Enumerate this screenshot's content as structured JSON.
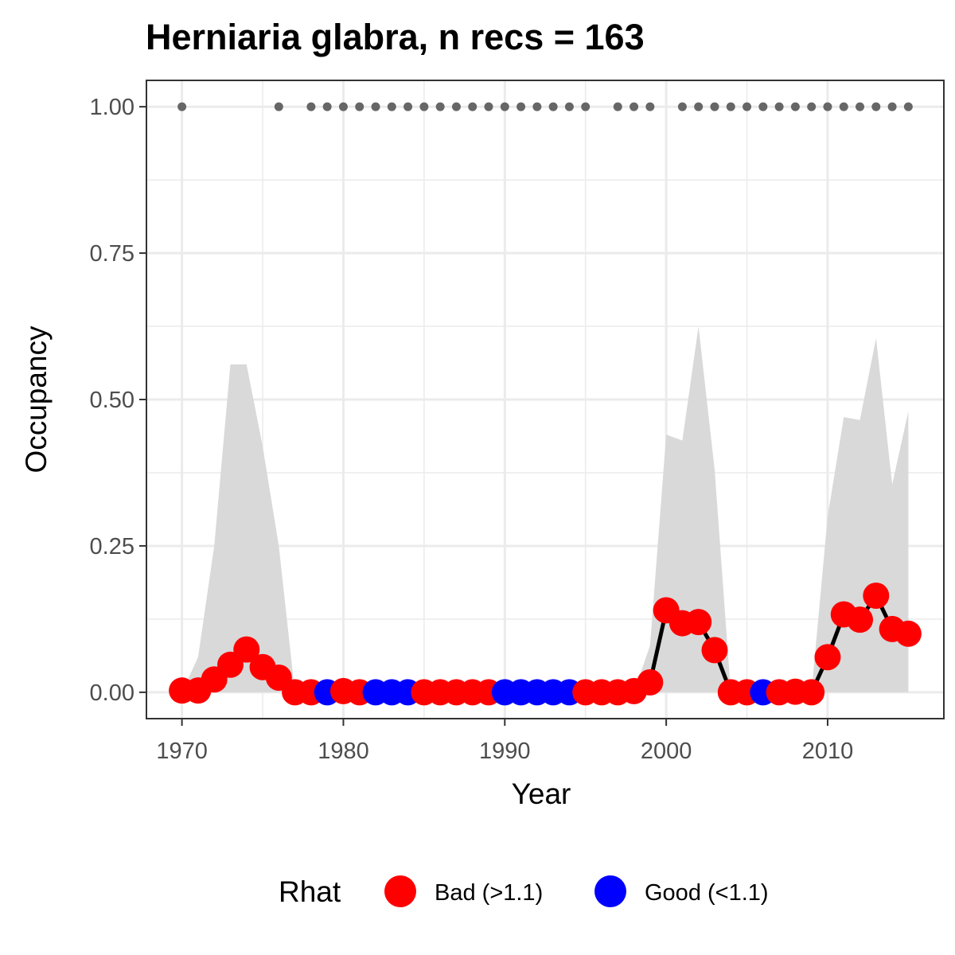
{
  "chart_data": {
    "type": "line",
    "title": "Herniaria glabra, n recs = 163",
    "xlabel": "Year",
    "ylabel": "Occupancy",
    "xlim": [
      1967.8,
      2017.2
    ],
    "ylim": [
      -0.045,
      1.045
    ],
    "x_ticks": [
      1970,
      1980,
      1990,
      2000,
      2010
    ],
    "x_tick_labels": [
      "1970",
      "1980",
      "1990",
      "2000",
      "2010"
    ],
    "y_ticks": [
      0,
      0.25,
      0.5,
      0.75,
      1.0
    ],
    "y_tick_labels": [
      "0.00",
      "0.25",
      "0.50",
      "0.75",
      "1.00"
    ],
    "grid": true,
    "legend": {
      "title": "Rhat",
      "position": "bottom",
      "entries": [
        {
          "label": "Bad (>1.1)",
          "color": "#ff0000"
        },
        {
          "label": "Good (<1.1)",
          "color": "#0000ff"
        }
      ]
    },
    "colors": {
      "bad": "#ff0000",
      "good": "#0000ff",
      "ribbon": "#d9d9d9",
      "line": "#000000",
      "record": "#666666"
    },
    "years": [
      1970,
      1971,
      1972,
      1973,
      1974,
      1975,
      1976,
      1977,
      1978,
      1979,
      1980,
      1981,
      1982,
      1983,
      1984,
      1985,
      1986,
      1987,
      1988,
      1989,
      1990,
      1991,
      1992,
      1993,
      1994,
      1995,
      1996,
      1997,
      1998,
      1999,
      2000,
      2001,
      2002,
      2003,
      2004,
      2005,
      2006,
      2007,
      2008,
      2009,
      2010,
      2011,
      2012,
      2013,
      2014,
      2015
    ],
    "occupancy": [
      0.003,
      0.003,
      0.022,
      0.047,
      0.073,
      0.043,
      0.025,
      0.0,
      0.0,
      0.0,
      0.002,
      0.0,
      0.0,
      0.0,
      0.0,
      0.0,
      0.0,
      0.0,
      0.0,
      0.0,
      0.0,
      0.0,
      0.0,
      0.0,
      0.0,
      0.0,
      0.0,
      0.0,
      0.002,
      0.017,
      0.14,
      0.118,
      0.12,
      0.072,
      0.0,
      0.0,
      0.0,
      0.0,
      0.001,
      0.0,
      0.06,
      0.133,
      0.124,
      0.165,
      0.108,
      0.1
    ],
    "upper": [
      0.0,
      0.06,
      0.25,
      0.56,
      0.56,
      0.42,
      0.25,
      0.0,
      0.0,
      0.0,
      0.0,
      0.0,
      0.0,
      0.0,
      0.0,
      0.0,
      0.0,
      0.0,
      0.0,
      0.0,
      0.0,
      0.0,
      0.0,
      0.0,
      0.0,
      0.0,
      0.0,
      0.0,
      0.0,
      0.08,
      0.44,
      0.43,
      0.625,
      0.38,
      0.0,
      0.0,
      0.0,
      0.0,
      0.0,
      0.0,
      0.3,
      0.47,
      0.465,
      0.605,
      0.355,
      0.48
    ],
    "rhat_good": [
      false,
      false,
      false,
      false,
      false,
      false,
      false,
      false,
      false,
      true,
      false,
      false,
      true,
      true,
      true,
      false,
      false,
      false,
      false,
      false,
      true,
      true,
      true,
      true,
      true,
      false,
      false,
      false,
      false,
      false,
      false,
      false,
      false,
      false,
      false,
      false,
      true,
      false,
      false,
      false,
      false,
      false,
      false,
      false,
      false,
      false
    ],
    "record_years": [
      1970,
      1976,
      1978,
      1979,
      1980,
      1981,
      1982,
      1983,
      1984,
      1985,
      1986,
      1987,
      1988,
      1989,
      1990,
      1991,
      1992,
      1993,
      1994,
      1995,
      1997,
      1998,
      1999,
      2001,
      2002,
      2003,
      2004,
      2005,
      2006,
      2007,
      2008,
      2009,
      2010,
      2011,
      2012,
      2013,
      2014,
      2015
    ],
    "record_value": 1.0
  }
}
